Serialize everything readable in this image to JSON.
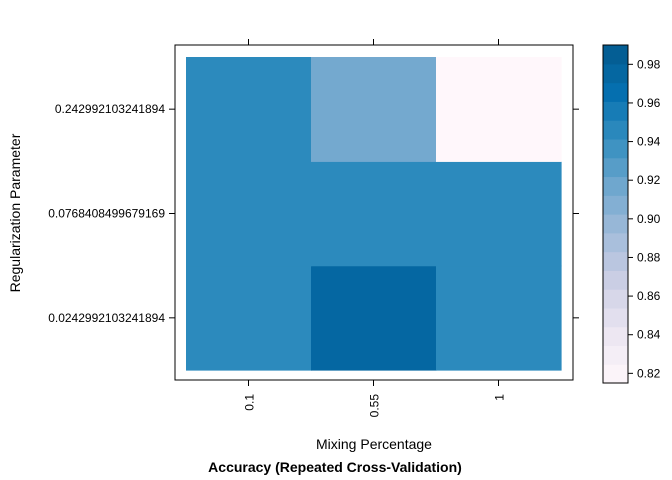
{
  "chart_data": {
    "type": "heatmap",
    "title": "Accuracy (Repeated Cross-Validation)",
    "xlabel": "Mixing Percentage",
    "ylabel": "Regularization Parameter",
    "x": [
      "0.1",
      "0.55",
      "1"
    ],
    "y": [
      "0.0242992103241894",
      "0.0768408499679169",
      "0.242992103241894"
    ],
    "values": [
      [
        0.945,
        0.975,
        0.945
      ],
      [
        0.945,
        0.945,
        0.945
      ],
      [
        0.945,
        0.915,
        0.815
      ]
    ],
    "colorbar": {
      "range": [
        0.815,
        0.99
      ],
      "ticks": [
        "0.82",
        "0.84",
        "0.86",
        "0.88",
        "0.90",
        "0.92",
        "0.94",
        "0.96",
        "0.98"
      ],
      "colors": [
        "#FFF7FB",
        "#ECE7F2",
        "#D0D1E6",
        "#A6BDDB",
        "#74A9CF",
        "#3690C0",
        "#0570B0",
        "#045A8D"
      ]
    },
    "grid": false,
    "legend": "right"
  }
}
